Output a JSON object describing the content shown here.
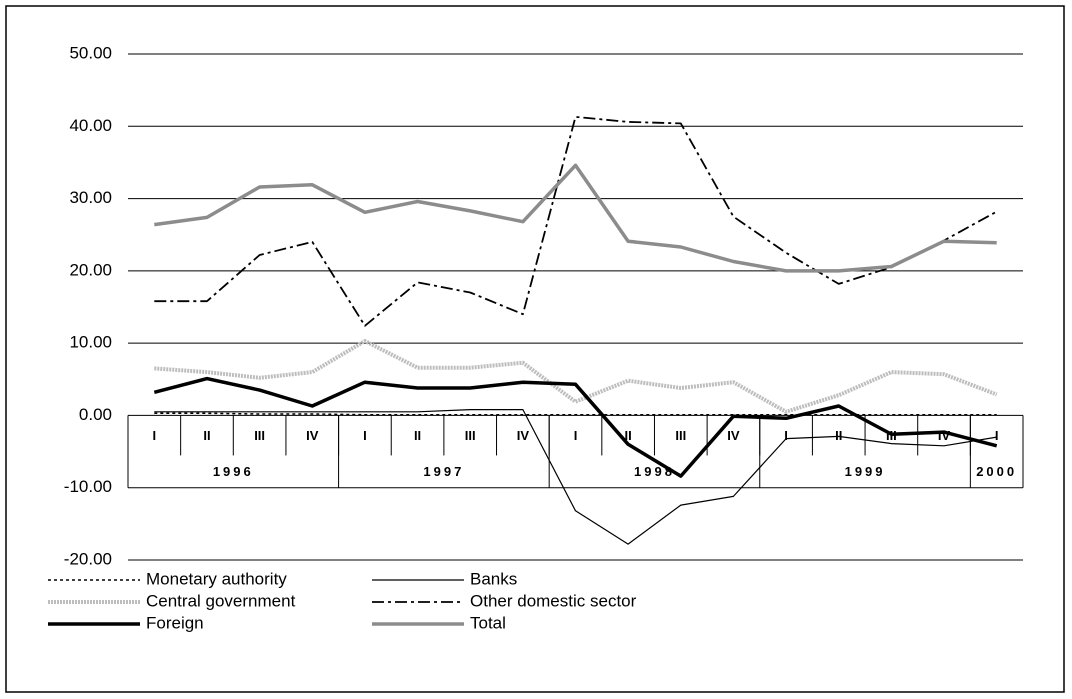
{
  "chart_data": {
    "type": "line",
    "categories": [
      "I",
      "II",
      "III",
      "IV",
      "I",
      "II",
      "III",
      "IV",
      "I",
      "II",
      "III",
      "IV",
      "I",
      "II",
      "III",
      "IV",
      "I"
    ],
    "category_groups": [
      {
        "label": "1996",
        "count": 4
      },
      {
        "label": "1997",
        "count": 4
      },
      {
        "label": "1998",
        "count": 4
      },
      {
        "label": "1999",
        "count": 4
      },
      {
        "label": "2000",
        "count": 1
      }
    ],
    "ylim": [
      -20,
      50
    ],
    "yticks": [
      {
        "value": -20,
        "label": "-20.00"
      },
      {
        "value": -10,
        "label": "-10.00"
      },
      {
        "value": 0,
        "label": "0.00"
      },
      {
        "value": 10,
        "label": "10.00"
      },
      {
        "value": 20,
        "label": "20.00"
      },
      {
        "value": 30,
        "label": "30.00"
      },
      {
        "value": 40,
        "label": "40.00"
      },
      {
        "value": 50,
        "label": "50.00"
      }
    ],
    "grid": true,
    "series": [
      {
        "name": "Monetary authority",
        "color": "#000000",
        "style": "dotted",
        "values": [
          0.3,
          0.3,
          0.2,
          0.2,
          0.1,
          0.1,
          0.1,
          0.1,
          0.1,
          0.1,
          0.1,
          0.1,
          0.1,
          0.1,
          0.1,
          0.1,
          0.1
        ]
      },
      {
        "name": "Banks",
        "color": "#000000",
        "style": "thin",
        "values": [
          0.5,
          0.5,
          0.5,
          0.5,
          0.5,
          0.5,
          0.8,
          0.8,
          -13.2,
          -17.8,
          -12.4,
          -11.2,
          -3.2,
          -2.9,
          -3.9,
          -4.2,
          -3.0
        ]
      },
      {
        "name": "Central government",
        "color": "#bdbdbd",
        "style": "thick-dotted",
        "values": [
          6.5,
          6.0,
          5.2,
          6.0,
          10.3,
          6.6,
          6.6,
          7.3,
          1.9,
          4.8,
          3.8,
          4.6,
          0.5,
          2.8,
          6.0,
          5.7,
          2.9
        ]
      },
      {
        "name": "Other domestic sector",
        "color": "#000000",
        "style": "dash-dot",
        "values": [
          15.8,
          15.8,
          22.2,
          24.0,
          12.4,
          18.4,
          17.0,
          14.0,
          41.3,
          40.6,
          40.4,
          27.5,
          22.5,
          18.2,
          20.5,
          24.2,
          28.2
        ]
      },
      {
        "name": "Foreign",
        "color": "#000000",
        "style": "thick",
        "values": [
          3.2,
          5.1,
          3.5,
          1.3,
          4.6,
          3.8,
          3.8,
          4.6,
          4.3,
          -4.0,
          -8.4,
          -0.1,
          -0.4,
          1.3,
          -2.6,
          -2.3,
          -4.2
        ]
      },
      {
        "name": "Total",
        "color": "#8c8c8c",
        "style": "thick",
        "values": [
          26.4,
          27.4,
          31.6,
          31.9,
          28.1,
          29.6,
          28.3,
          26.8,
          34.6,
          24.1,
          23.3,
          21.3,
          20.0,
          20.0,
          20.6,
          24.1,
          23.9
        ]
      }
    ]
  }
}
